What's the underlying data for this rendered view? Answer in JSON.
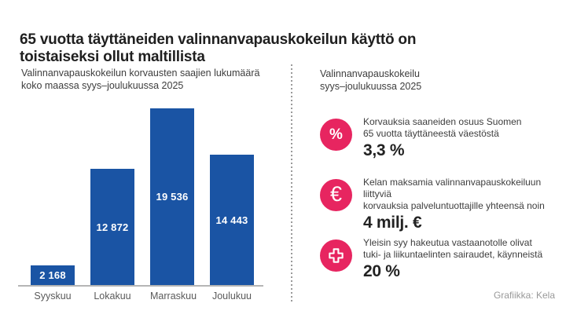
{
  "header": {
    "title_line1": "65 vuotta täyttäneiden valinnanvapauskokeilun käyttö on",
    "title_line2": "toistaiseksi ollut maltillista"
  },
  "left_panel": {
    "subtitle_line1": "Valinnanvapauskokeilun korvausten saajien lukumäärä",
    "subtitle_line2": "koko maassa syys–joulukuussa 2025"
  },
  "chart_data": {
    "type": "bar",
    "title": "Valinnanvapauskokeilun korvausten saajien lukumäärä koko maassa syys–joulukuussa 2025",
    "categories": [
      "Syyskuu",
      "Lokakuu",
      "Marraskuu",
      "Joulukuu"
    ],
    "values": [
      2168,
      12872,
      19536,
      14443
    ],
    "formatted_values": [
      "2 168",
      "12 872",
      "19 536",
      "14 443"
    ],
    "bar_color": "#1A54A4",
    "value_label_color": "#FFFFFF",
    "xlabel": "",
    "ylabel": "",
    "ylim": [
      0,
      19536
    ],
    "grid": false,
    "legend": false,
    "value_labels_position": "inside-center"
  },
  "right_panel": {
    "heading_line1": "Valinnanvapauskokeilu",
    "heading_line2": "syys–joulukuussa 2025",
    "items": [
      {
        "icon": "percent-icon",
        "icon_glyph": "%",
        "line1": "Korvauksia saaneiden osuus Suomen",
        "line2": "65 vuotta täyttäneestä väestöstä",
        "value": "3,3 %"
      },
      {
        "icon": "euro-icon",
        "icon_glyph": "€",
        "line1": "Kelan maksamia valinnanvapauskokeiluun liittyviä",
        "line2": "korvauksia palveluntuottajille yhteensä noin",
        "value": "4 milj. €"
      },
      {
        "icon": "medical-cross-icon",
        "icon_glyph": "+",
        "line1": "Yleisin syy hakeutua vastaanotolle olivat",
        "line2": "tuki- ja liikuntaelinten sairaudet, käynneistä",
        "value": "20 %"
      }
    ]
  },
  "footer": {
    "credit": "Grafiikka: Kela"
  },
  "colors": {
    "bar_blue": "#1A54A4",
    "accent_pink": "#E72560",
    "title_text": "#1F1F1F",
    "body_text": "#3D3D3D",
    "muted_text": "#5A5A5A",
    "credit_text": "#999999",
    "axis_gray": "#B5B5B5",
    "background": "#FFFFFF"
  }
}
